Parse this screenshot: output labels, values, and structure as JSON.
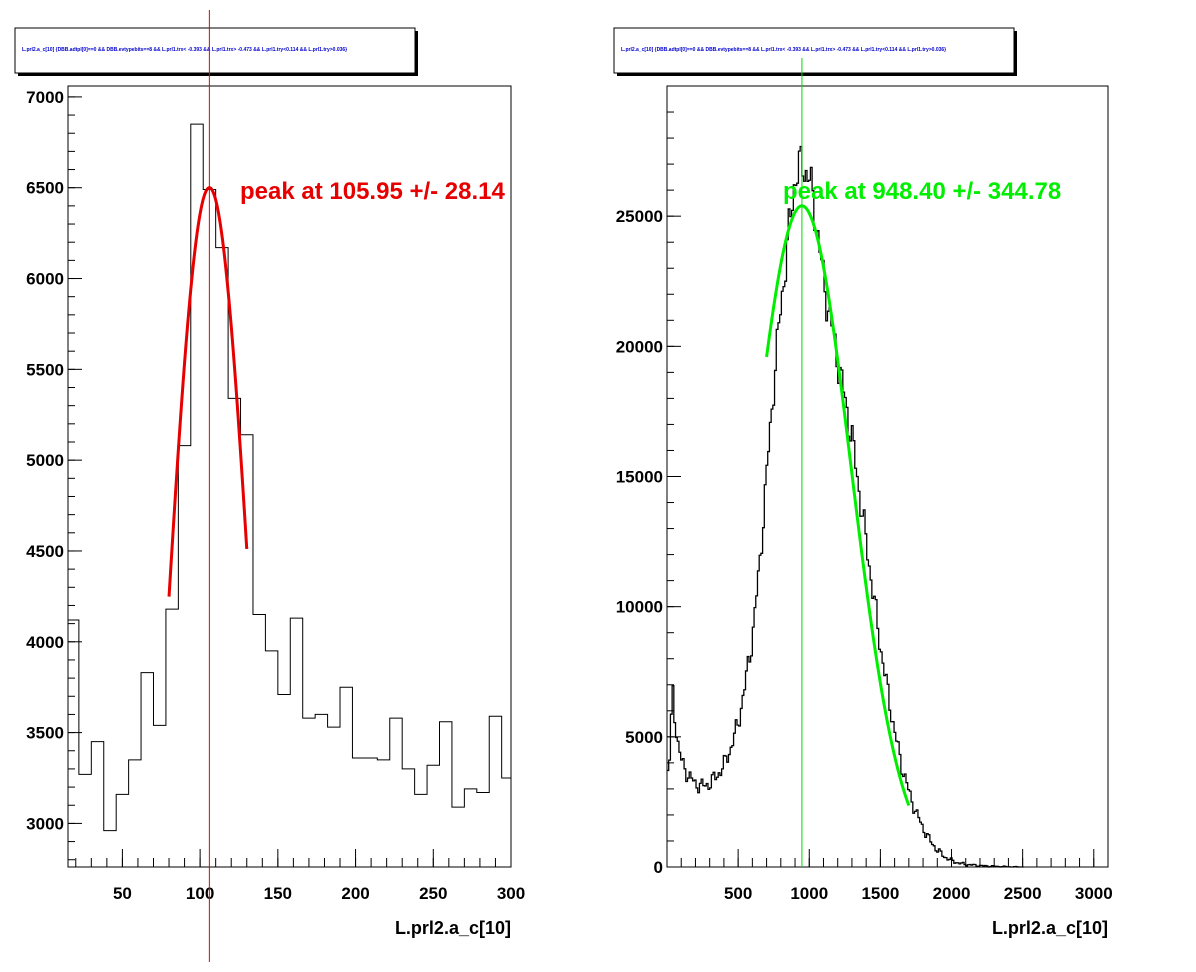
{
  "chart_data": [
    {
      "type": "histogram",
      "title": "L.prl2.a_c[10] {DBB.adtpl[0]==0 && DBB.evtypebits==8 &&  L.prl1.trx< -0.393 && L.prl1.trx> -0.473 && L.prl1.try<0.114 && L.prl1.try>0.036}",
      "xlabel": "L.prl2.a_c[10]",
      "xlim": [
        15,
        300
      ],
      "ylim": [
        2760,
        7060
      ],
      "xticks": [
        50,
        100,
        150,
        200,
        250,
        300
      ],
      "yticks": [
        3000,
        3500,
        4000,
        4500,
        5000,
        5500,
        6000,
        6500,
        7000
      ],
      "bin_edges": [
        15,
        22,
        30,
        38,
        46,
        54,
        62,
        70,
        78,
        86,
        94,
        102,
        110,
        118,
        126,
        134,
        142,
        150,
        158,
        166,
        174,
        182,
        190,
        198,
        206,
        214,
        222,
        230,
        238,
        246,
        254,
        262,
        270,
        278,
        286,
        294,
        300
      ],
      "counts": [
        4120,
        3270,
        3450,
        2960,
        3160,
        3350,
        3830,
        3540,
        4180,
        5080,
        6850,
        6490,
        6170,
        5340,
        5140,
        4150,
        3950,
        3710,
        4130,
        3580,
        3600,
        3530,
        3750,
        3360,
        3360,
        3350,
        3580,
        3300,
        3160,
        3320,
        3560,
        3090,
        3190,
        3170,
        3590,
        3250
      ],
      "fit": {
        "mean": 105.95,
        "sigma": 28.14,
        "amplitude": 6500,
        "range": [
          80,
          130
        ],
        "color": "#e60000"
      },
      "marker_x": 105.95,
      "marker_color": "#e60000",
      "annotation": "peak at 105.95 +/- 28.14"
    },
    {
      "type": "histogram",
      "title": "L.prl2.a_c[10] {DBB.adtpl[0]==0 && DBB.evtypebits==8 &&  L.prl1.trx< -0.393 && L.prl1.trx> -0.473 && L.prl1.try<0.114 && L.prl1.try>0.036}",
      "xlabel": "L.prl2.a_c[10]",
      "xlim": [
        0,
        3100
      ],
      "ylim": [
        0,
        30000
      ],
      "xticks": [
        500,
        1000,
        1500,
        2000,
        2500,
        3000
      ],
      "yticks": [
        0,
        5000,
        10000,
        15000,
        20000,
        25000
      ],
      "profile_points": [
        [
          0,
          3500
        ],
        [
          20,
          4200
        ],
        [
          40,
          6900
        ],
        [
          60,
          5500
        ],
        [
          80,
          4600
        ],
        [
          100,
          4100
        ],
        [
          150,
          3500
        ],
        [
          200,
          3200
        ],
        [
          250,
          3100
        ],
        [
          300,
          3200
        ],
        [
          350,
          3500
        ],
        [
          400,
          3900
        ],
        [
          450,
          4600
        ],
        [
          500,
          5500
        ],
        [
          550,
          7000
        ],
        [
          600,
          8800
        ],
        [
          650,
          11500
        ],
        [
          700,
          15000
        ],
        [
          750,
          18500
        ],
        [
          800,
          21500
        ],
        [
          850,
          24000
        ],
        [
          900,
          26500
        ],
        [
          950,
          27000
        ],
        [
          1000,
          26500
        ],
        [
          1050,
          24800
        ],
        [
          1100,
          22500
        ],
        [
          1150,
          21000
        ],
        [
          1200,
          19500
        ],
        [
          1250,
          18000
        ],
        [
          1300,
          16500
        ],
        [
          1350,
          14500
        ],
        [
          1400,
          12500
        ],
        [
          1450,
          10500
        ],
        [
          1500,
          8500
        ],
        [
          1550,
          6800
        ],
        [
          1600,
          5200
        ],
        [
          1650,
          3900
        ],
        [
          1700,
          2900
        ],
        [
          1750,
          2100
        ],
        [
          1800,
          1500
        ],
        [
          1850,
          1000
        ],
        [
          1900,
          650
        ],
        [
          1950,
          400
        ],
        [
          2000,
          250
        ],
        [
          2050,
          150
        ],
        [
          2100,
          100
        ],
        [
          2200,
          50
        ],
        [
          2300,
          25
        ],
        [
          2400,
          10
        ],
        [
          2500,
          0
        ]
      ],
      "fit": {
        "mean": 948.4,
        "sigma": 344.78,
        "amplitude": 25400,
        "range": [
          700,
          1700
        ],
        "color": "#00ee00"
      },
      "marker_x": 948.4,
      "marker_color": "#00dd00",
      "annotation": "peak at 948.40 +/- 344.78"
    }
  ]
}
